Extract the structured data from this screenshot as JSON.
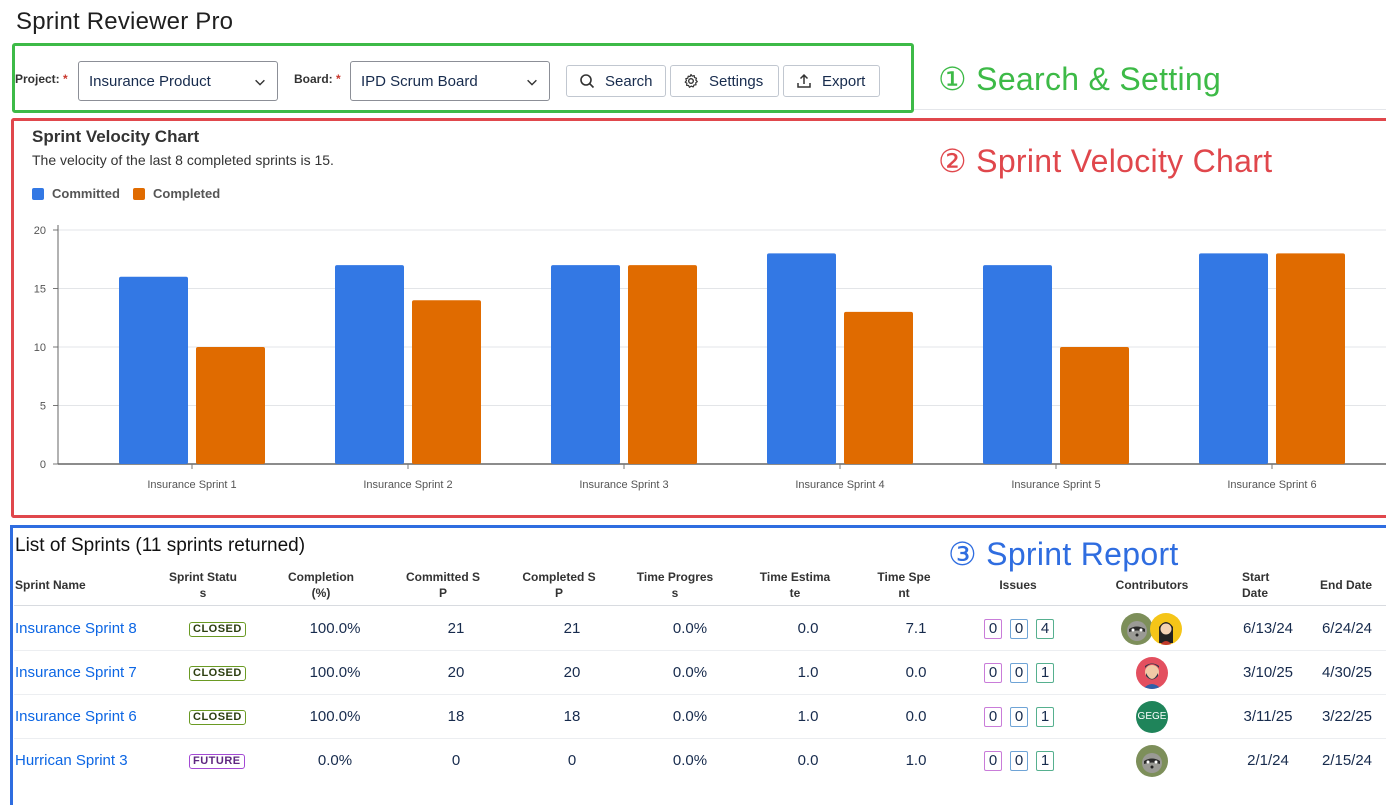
{
  "app": {
    "title": "Sprint Reviewer Pro"
  },
  "annotations": {
    "search_setting": "① Search & Setting",
    "velocity_chart": "② Sprint Velocity Chart",
    "sprint_report": "③ Sprint Report"
  },
  "toolbar": {
    "project_label": "Project:",
    "project_value": "Insurance Product",
    "board_label": "Board:",
    "board_value": "IPD Scrum Board",
    "required_mark": "*",
    "search_label": "Search",
    "settings_label": "Settings",
    "export_label": "Export"
  },
  "velocity": {
    "title": "Sprint Velocity Chart",
    "subtitle": "The velocity of the last 8 completed sprints is 15.",
    "legend": [
      {
        "name": "Committed",
        "color": "#3378e4"
      },
      {
        "name": "Completed",
        "color": "#e06b00"
      }
    ]
  },
  "chart_data": {
    "type": "bar",
    "categories": [
      "Insurance Sprint 1",
      "Insurance Sprint 2",
      "Insurance Sprint 3",
      "Insurance Sprint 4",
      "Insurance Sprint 5",
      "Insurance Sprint 6"
    ],
    "series": [
      {
        "name": "Committed",
        "values": [
          16,
          17,
          17,
          18,
          17,
          18
        ],
        "color": "#3378e4"
      },
      {
        "name": "Completed",
        "values": [
          10,
          14,
          17,
          13,
          10,
          18
        ],
        "color": "#e06b00"
      }
    ],
    "ylim": [
      0,
      20
    ],
    "yticks": [
      0,
      5,
      10,
      15,
      20
    ],
    "grid": true,
    "legend_position": "top-left"
  },
  "sprints": {
    "title": "List of Sprints (11 sprints returned)",
    "headers": {
      "name": "Sprint Name",
      "status": [
        "Sprint Statu",
        "s"
      ],
      "completion": [
        "Completion",
        "(%)"
      ],
      "committed": [
        "Committed S",
        "P"
      ],
      "completed": [
        "Completed S",
        "P"
      ],
      "time_progress": [
        "Time Progres",
        "s"
      ],
      "time_estimate": [
        "Time Estima",
        "te"
      ],
      "time_spent": [
        "Time Spe",
        "nt"
      ],
      "issues": "Issues",
      "contributors": "Contributors",
      "start_date": [
        "Start",
        "Date"
      ],
      "end_date": "End Date"
    },
    "rows": [
      {
        "name": "Insurance Sprint 8",
        "status": "CLOSED",
        "completion": "100.0%",
        "committed": "21",
        "completed": "21",
        "time_progress": "0.0%",
        "time_estimate": "0.0",
        "time_spent": "7.1",
        "issues": [
          "0",
          "0",
          "4"
        ],
        "contributors": [
          "raccoon-avatar",
          "woman-avatar"
        ],
        "start": "6/13/24",
        "end": "6/24/24"
      },
      {
        "name": "Insurance Sprint 7",
        "status": "CLOSED",
        "completion": "100.0%",
        "committed": "20",
        "completed": "20",
        "time_progress": "0.0%",
        "time_estimate": "1.0",
        "time_spent": "0.0",
        "issues": [
          "0",
          "0",
          "1"
        ],
        "contributors": [
          "bearded-man-avatar"
        ],
        "start": "3/10/25",
        "end": "4/30/25"
      },
      {
        "name": "Insurance Sprint 6",
        "status": "CLOSED",
        "completion": "100.0%",
        "committed": "18",
        "completed": "18",
        "time_progress": "0.0%",
        "time_estimate": "1.0",
        "time_spent": "0.0",
        "issues": [
          "0",
          "0",
          "1"
        ],
        "contributors": [
          "GEGE"
        ],
        "start": "3/11/25",
        "end": "3/22/25"
      },
      {
        "name": "Hurrican Sprint 3",
        "status": "FUTURE",
        "completion": "0.0%",
        "committed": "0",
        "completed": "0",
        "time_progress": "0.0%",
        "time_estimate": "0.0",
        "time_spent": "1.0",
        "issues": [
          "0",
          "0",
          "1"
        ],
        "contributors": [
          "raccoon-avatar"
        ],
        "start": "2/1/24",
        "end": "2/15/24"
      }
    ]
  }
}
